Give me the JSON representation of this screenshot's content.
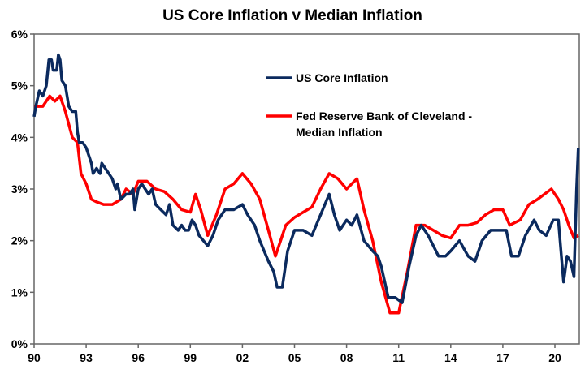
{
  "chart_data": {
    "type": "line",
    "title": "US Core Inflation v Median Inflation",
    "xlim": [
      1990,
      2021.5
    ],
    "ylim": [
      0,
      6
    ],
    "x_ticks": [
      {
        "v": 1990,
        "label": "90"
      },
      {
        "v": 1993,
        "label": "93"
      },
      {
        "v": 1996,
        "label": "96"
      },
      {
        "v": 1999,
        "label": "99"
      },
      {
        "v": 2002,
        "label": "02"
      },
      {
        "v": 2005,
        "label": "05"
      },
      {
        "v": 2008,
        "label": "08"
      },
      {
        "v": 2011,
        "label": "11"
      },
      {
        "v": 2014,
        "label": "14"
      },
      {
        "v": 2017,
        "label": "17"
      },
      {
        "v": 2020,
        "label": "20"
      }
    ],
    "y_ticks": [
      {
        "v": 0,
        "label": "0%"
      },
      {
        "v": 1,
        "label": "1%"
      },
      {
        "v": 2,
        "label": "2%"
      },
      {
        "v": 3,
        "label": "3%"
      },
      {
        "v": 4,
        "label": "4%"
      },
      {
        "v": 5,
        "label": "5%"
      },
      {
        "v": 6,
        "label": "6%"
      }
    ],
    "grid": false,
    "legend_position": "top-center",
    "series": [
      {
        "name": "US Core Inflation",
        "color": "#0b2a5e",
        "points": [
          [
            1990,
            4.4
          ],
          [
            1990.1,
            4.6
          ],
          [
            1990.3,
            4.9
          ],
          [
            1990.5,
            4.8
          ],
          [
            1990.7,
            5.0
          ],
          [
            1990.85,
            5.5
          ],
          [
            1991,
            5.5
          ],
          [
            1991.1,
            5.3
          ],
          [
            1991.3,
            5.3
          ],
          [
            1991.4,
            5.6
          ],
          [
            1991.5,
            5.5
          ],
          [
            1991.6,
            5.1
          ],
          [
            1991.8,
            5.0
          ],
          [
            1992,
            4.6
          ],
          [
            1992.2,
            4.5
          ],
          [
            1992.4,
            4.5
          ],
          [
            1992.5,
            4.1
          ],
          [
            1992.6,
            3.9
          ],
          [
            1992.8,
            3.9
          ],
          [
            1993,
            3.8
          ],
          [
            1993.2,
            3.6
          ],
          [
            1993.3,
            3.5
          ],
          [
            1993.4,
            3.3
          ],
          [
            1993.6,
            3.4
          ],
          [
            1993.8,
            3.3
          ],
          [
            1993.9,
            3.5
          ],
          [
            1994.1,
            3.4
          ],
          [
            1994.3,
            3.3
          ],
          [
            1994.5,
            3.2
          ],
          [
            1994.7,
            3.0
          ],
          [
            1994.8,
            3.1
          ],
          [
            1995,
            2.8
          ],
          [
            1995.3,
            2.9
          ],
          [
            1995.5,
            2.9
          ],
          [
            1995.7,
            3.0
          ],
          [
            1995.8,
            2.6
          ],
          [
            1996,
            3.0
          ],
          [
            1996.2,
            3.1
          ],
          [
            1996.4,
            3.0
          ],
          [
            1996.6,
            2.9
          ],
          [
            1996.8,
            3.0
          ],
          [
            1997,
            2.7
          ],
          [
            1997.3,
            2.6
          ],
          [
            1997.6,
            2.5
          ],
          [
            1997.8,
            2.7
          ],
          [
            1998,
            2.3
          ],
          [
            1998.3,
            2.2
          ],
          [
            1998.5,
            2.3
          ],
          [
            1998.7,
            2.2
          ],
          [
            1998.9,
            2.2
          ],
          [
            1999.1,
            2.4
          ],
          [
            1999.3,
            2.3
          ],
          [
            1999.5,
            2.1
          ],
          [
            2000,
            1.9
          ],
          [
            2000.3,
            2.1
          ],
          [
            2000.6,
            2.4
          ],
          [
            2001,
            2.6
          ],
          [
            2001.5,
            2.6
          ],
          [
            2002,
            2.7
          ],
          [
            2002.3,
            2.5
          ],
          [
            2002.7,
            2.3
          ],
          [
            2003,
            2.0
          ],
          [
            2003.5,
            1.6
          ],
          [
            2003.8,
            1.4
          ],
          [
            2004,
            1.1
          ],
          [
            2004.3,
            1.1
          ],
          [
            2004.6,
            1.8
          ],
          [
            2005,
            2.2
          ],
          [
            2005.5,
            2.2
          ],
          [
            2006,
            2.1
          ],
          [
            2006.5,
            2.5
          ],
          [
            2007,
            2.9
          ],
          [
            2007.3,
            2.5
          ],
          [
            2007.6,
            2.2
          ],
          [
            2008,
            2.4
          ],
          [
            2008.3,
            2.3
          ],
          [
            2008.6,
            2.5
          ],
          [
            2009,
            2.0
          ],
          [
            2009.5,
            1.8
          ],
          [
            2009.8,
            1.7
          ],
          [
            2010,
            1.5
          ],
          [
            2010.4,
            0.9
          ],
          [
            2010.8,
            0.9
          ],
          [
            2011.2,
            0.8
          ],
          [
            2011.6,
            1.5
          ],
          [
            2012,
            2.1
          ],
          [
            2012.3,
            2.3
          ],
          [
            2012.7,
            2.1
          ],
          [
            2013,
            1.9
          ],
          [
            2013.3,
            1.7
          ],
          [
            2013.7,
            1.7
          ],
          [
            2014,
            1.8
          ],
          [
            2014.5,
            2.0
          ],
          [
            2015,
            1.7
          ],
          [
            2015.4,
            1.6
          ],
          [
            2015.8,
            2.0
          ],
          [
            2016.3,
            2.2
          ],
          [
            2016.8,
            2.2
          ],
          [
            2017.2,
            2.2
          ],
          [
            2017.5,
            1.7
          ],
          [
            2017.9,
            1.7
          ],
          [
            2018.3,
            2.1
          ],
          [
            2018.8,
            2.4
          ],
          [
            2019.1,
            2.2
          ],
          [
            2019.5,
            2.1
          ],
          [
            2019.9,
            2.4
          ],
          [
            2020.2,
            2.4
          ],
          [
            2020.4,
            1.6
          ],
          [
            2020.5,
            1.2
          ],
          [
            2020.7,
            1.7
          ],
          [
            2020.9,
            1.6
          ],
          [
            2021.1,
            1.3
          ],
          [
            2021.25,
            3.0
          ],
          [
            2021.35,
            3.8
          ]
        ]
      },
      {
        "name": "Fed Reserve Bank of Cleveland - Median Inflation",
        "name_lines": [
          "Fed Reserve Bank of Cleveland -",
          "Median Inflation"
        ],
        "color": "#ff0000",
        "points": [
          [
            1990,
            4.6
          ],
          [
            1990.5,
            4.6
          ],
          [
            1990.9,
            4.8
          ],
          [
            1991.2,
            4.7
          ],
          [
            1991.5,
            4.8
          ],
          [
            1991.8,
            4.5
          ],
          [
            1992.2,
            4.0
          ],
          [
            1992.5,
            3.9
          ],
          [
            1992.7,
            3.3
          ],
          [
            1993,
            3.1
          ],
          [
            1993.3,
            2.8
          ],
          [
            1993.6,
            2.75
          ],
          [
            1994,
            2.7
          ],
          [
            1994.5,
            2.7
          ],
          [
            1995,
            2.8
          ],
          [
            1995.3,
            3.0
          ],
          [
            1995.7,
            2.9
          ],
          [
            1996,
            3.15
          ],
          [
            1996.5,
            3.15
          ],
          [
            1997,
            3.0
          ],
          [
            1997.5,
            2.95
          ],
          [
            1998,
            2.8
          ],
          [
            1998.5,
            2.6
          ],
          [
            1999,
            2.55
          ],
          [
            1999.3,
            2.9
          ],
          [
            1999.6,
            2.6
          ],
          [
            2000,
            2.1
          ],
          [
            2000.5,
            2.5
          ],
          [
            2001,
            3.0
          ],
          [
            2001.5,
            3.1
          ],
          [
            2002,
            3.3
          ],
          [
            2002.5,
            3.1
          ],
          [
            2003,
            2.8
          ],
          [
            2003.5,
            2.2
          ],
          [
            2003.9,
            1.7
          ],
          [
            2004.5,
            2.3
          ],
          [
            2005,
            2.45
          ],
          [
            2005.5,
            2.55
          ],
          [
            2006,
            2.65
          ],
          [
            2006.5,
            3.0
          ],
          [
            2007,
            3.3
          ],
          [
            2007.5,
            3.2
          ],
          [
            2008,
            3.0
          ],
          [
            2008.6,
            3.2
          ],
          [
            2009,
            2.6
          ],
          [
            2009.5,
            2.0
          ],
          [
            2010,
            1.2
          ],
          [
            2010.5,
            0.6
          ],
          [
            2011,
            0.6
          ],
          [
            2011.5,
            1.4
          ],
          [
            2012,
            2.3
          ],
          [
            2012.5,
            2.3
          ],
          [
            2013,
            2.2
          ],
          [
            2013.5,
            2.1
          ],
          [
            2014,
            2.05
          ],
          [
            2014.5,
            2.3
          ],
          [
            2015,
            2.3
          ],
          [
            2015.5,
            2.35
          ],
          [
            2016,
            2.5
          ],
          [
            2016.5,
            2.6
          ],
          [
            2017,
            2.6
          ],
          [
            2017.4,
            2.3
          ],
          [
            2018,
            2.4
          ],
          [
            2018.5,
            2.7
          ],
          [
            2019,
            2.8
          ],
          [
            2019.8,
            3.0
          ],
          [
            2020.2,
            2.8
          ],
          [
            2020.5,
            2.6
          ],
          [
            2020.8,
            2.3
          ],
          [
            2021.1,
            2.05
          ],
          [
            2021.35,
            2.1
          ]
        ]
      }
    ]
  }
}
